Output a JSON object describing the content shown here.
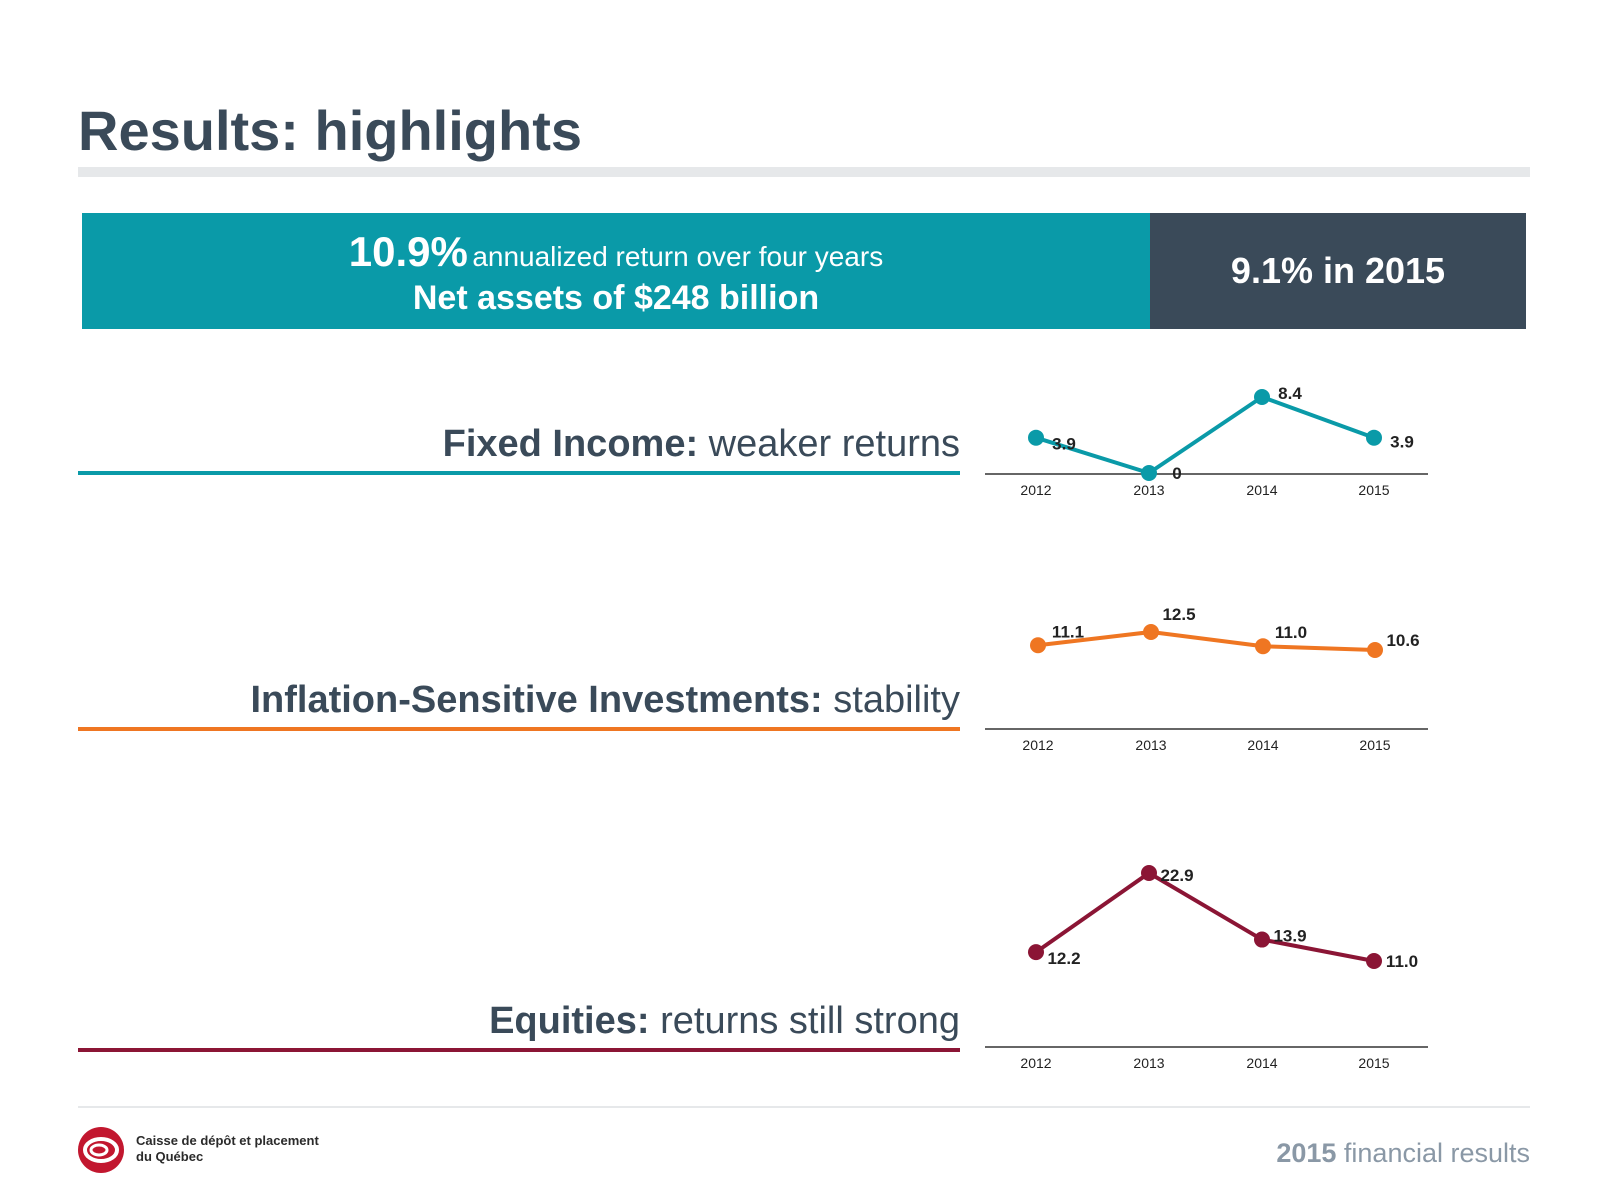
{
  "title": "Results: highlights",
  "banner": {
    "return_value": "10.9%",
    "return_text": "annualized return over four years",
    "net_assets": "Net assets of $248 billion",
    "year_return": "9.1% in 2015"
  },
  "colors": {
    "teal": "#0a9aa8",
    "orange": "#ef7622",
    "maroon": "#8b1535",
    "navy": "#3a4a59"
  },
  "chart_data": [
    {
      "type": "line",
      "label_bold": "Fixed Income:",
      "label_rest": " weaker returns",
      "color": "#0a9aa8",
      "categories": [
        "2012",
        "2013",
        "2014",
        "2015"
      ],
      "values": [
        3.9,
        0,
        8.4,
        3.9
      ],
      "data_labels": [
        "3.9",
        "0",
        "8.4",
        "3.9"
      ],
      "ylim": [
        0,
        8.4
      ]
    },
    {
      "type": "line",
      "label_bold": "Inflation-Sensitive Investments:",
      "label_rest": " stability",
      "color": "#ef7622",
      "categories": [
        "2012",
        "2013",
        "2014",
        "2015"
      ],
      "values": [
        11.1,
        12.5,
        11.0,
        10.6
      ],
      "data_labels": [
        "11.1",
        "12.5",
        "11.0",
        "10.6"
      ],
      "ylim": [
        0,
        22.9
      ]
    },
    {
      "type": "line",
      "label_bold": "Equities:",
      "label_rest": " returns still strong",
      "color": "#8b1535",
      "categories": [
        "2012",
        "2013",
        "2014",
        "2015"
      ],
      "values": [
        12.2,
        22.9,
        13.9,
        11.0
      ],
      "data_labels": [
        "12.2",
        "22.9",
        "13.9",
        "11.0"
      ],
      "ylim": [
        0,
        22.9
      ]
    }
  ],
  "footer": {
    "org_line1": "Caisse de dépôt et placement",
    "org_line2": "du Québec",
    "report_year": "2015",
    "report_text": "financial results"
  }
}
